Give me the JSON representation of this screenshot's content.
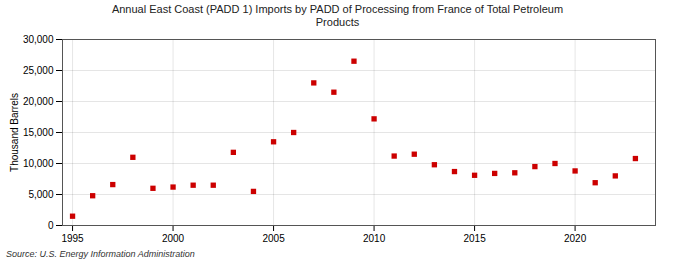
{
  "chart_data": {
    "type": "scatter",
    "title": "Annual East Coast (PADD 1) Imports by PADD of Processing from France of Total Petroleum\nProducts",
    "ylabel": "Thousand Barrels",
    "source": "Source: U.S. Energy Information Administration",
    "x": [
      1995,
      1996,
      1997,
      1998,
      1999,
      2000,
      2001,
      2002,
      2003,
      2004,
      2005,
      2006,
      2007,
      2008,
      2009,
      2010,
      2011,
      2012,
      2013,
      2014,
      2015,
      2016,
      2017,
      2018,
      2019,
      2020,
      2021,
      2022,
      2023
    ],
    "values": [
      1500,
      4800,
      6600,
      11000,
      6000,
      6200,
      6500,
      6500,
      11800,
      5500,
      13500,
      15000,
      23000,
      21500,
      26500,
      17200,
      11200,
      11500,
      9800,
      8700,
      8100,
      8400,
      8500,
      9500,
      10000,
      8800,
      6900,
      8000,
      10800
    ],
    "color": "#cc0000",
    "marker": "square",
    "xlim": [
      1994.5,
      2024
    ],
    "xticks": [
      1995,
      2000,
      2005,
      2010,
      2015,
      2020
    ],
    "ylim": [
      0,
      30000
    ],
    "yticks": [
      0,
      {
        "value": 5000,
        "label": "5,000"
      },
      {
        "value": 10000,
        "label": "10,000"
      },
      {
        "value": 15000,
        "label": "15,000"
      },
      {
        "value": 20000,
        "label": "20,000"
      },
      {
        "value": 25000,
        "label": "25,000"
      },
      {
        "value": 30000,
        "label": "30,000"
      }
    ],
    "grid": true
  }
}
